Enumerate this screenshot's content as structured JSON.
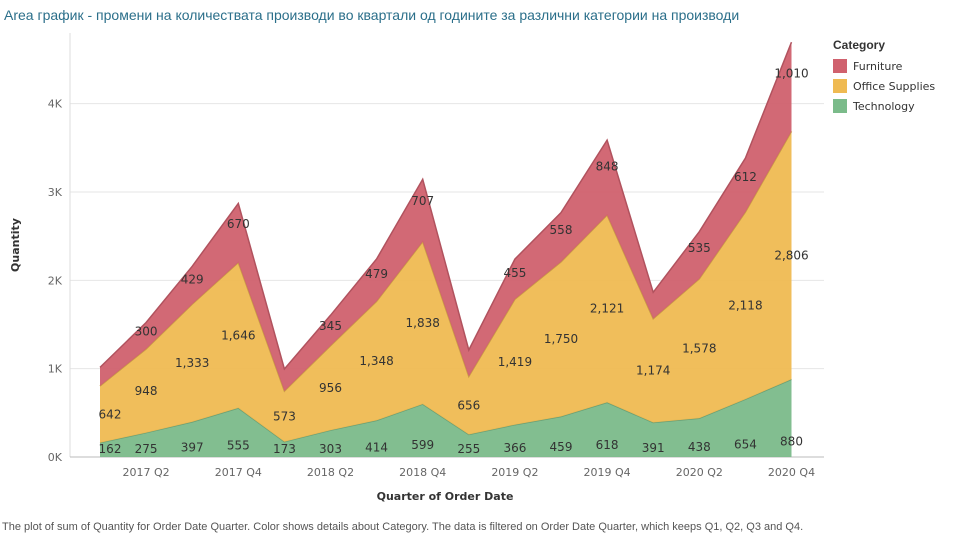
{
  "title": "Area график -  промени на количествата производи во квартали од годините за различни категории на производи",
  "caption": "The plot of sum of Quantity for Order Date Quarter.  Color shows details about Category. The data is filtered on Order Date Quarter, which keeps Q1, Q2, Q3 and Q4.",
  "legend": {
    "title": "Category",
    "items": [
      {
        "label": "Furniture",
        "color": "#d0616e"
      },
      {
        "label": "Office Supplies",
        "color": "#efba52"
      },
      {
        "label": "Technology",
        "color": "#7bbb8a"
      }
    ]
  },
  "chart_data": {
    "type": "area",
    "stacked": true,
    "xlabel": "Quarter of Order Date",
    "ylabel": "Quantity",
    "ylim": [
      0,
      4800
    ],
    "yticks": [
      0,
      1000,
      2000,
      3000,
      4000
    ],
    "ytick_labels": [
      "0K",
      "1K",
      "2K",
      "3K",
      "4K"
    ],
    "xtick_labels": [
      "2017 Q2",
      "2017 Q4",
      "2018 Q2",
      "2018 Q4",
      "2019 Q2",
      "2019 Q4",
      "2020 Q2",
      "2020 Q4"
    ],
    "categories": [
      "2017 Q1",
      "2017 Q2",
      "2017 Q3",
      "2017 Q4",
      "2018 Q1",
      "2018 Q2",
      "2018 Q3",
      "2018 Q4",
      "2019 Q1",
      "2019 Q2",
      "2019 Q3",
      "2019 Q4",
      "2020 Q1",
      "2020 Q2",
      "2020 Q3",
      "2020 Q4"
    ],
    "grid": true,
    "legend_position": "right",
    "series": [
      {
        "name": "Technology",
        "color": "#7bbb8a",
        "values": [
          162,
          275,
          397,
          555,
          173,
          303,
          414,
          599,
          255,
          366,
          459,
          618,
          391,
          438,
          654,
          880
        ],
        "labels": [
          "162",
          "275",
          "397",
          "555",
          "173",
          "303",
          "414",
          "599",
          "255",
          "366",
          "459",
          "618",
          "391",
          "438",
          "654",
          "880"
        ]
      },
      {
        "name": "Office Supplies",
        "color": "#efba52",
        "values": [
          642,
          948,
          1333,
          1646,
          573,
          956,
          1348,
          1838,
          656,
          1419,
          1750,
          2121,
          1174,
          1578,
          2118,
          2806
        ],
        "labels": [
          "642",
          "948",
          "1,333",
          "1,646",
          "573",
          "956",
          "1,348",
          "1,838",
          "656",
          "1,419",
          "1,750",
          "2,121",
          "1,174",
          "1,578",
          "2,118",
          "2,806"
        ]
      },
      {
        "name": "Furniture",
        "color": "#d0616e",
        "values": [
          210,
          300,
          429,
          670,
          250,
          345,
          479,
          707,
          300,
          455,
          558,
          848,
          300,
          535,
          612,
          1010
        ],
        "labels": [
          "",
          "300",
          "429",
          "670",
          "",
          "345",
          "479",
          "707",
          "",
          "455",
          "558",
          "848",
          "",
          "535",
          "612",
          "1,010"
        ]
      }
    ]
  }
}
